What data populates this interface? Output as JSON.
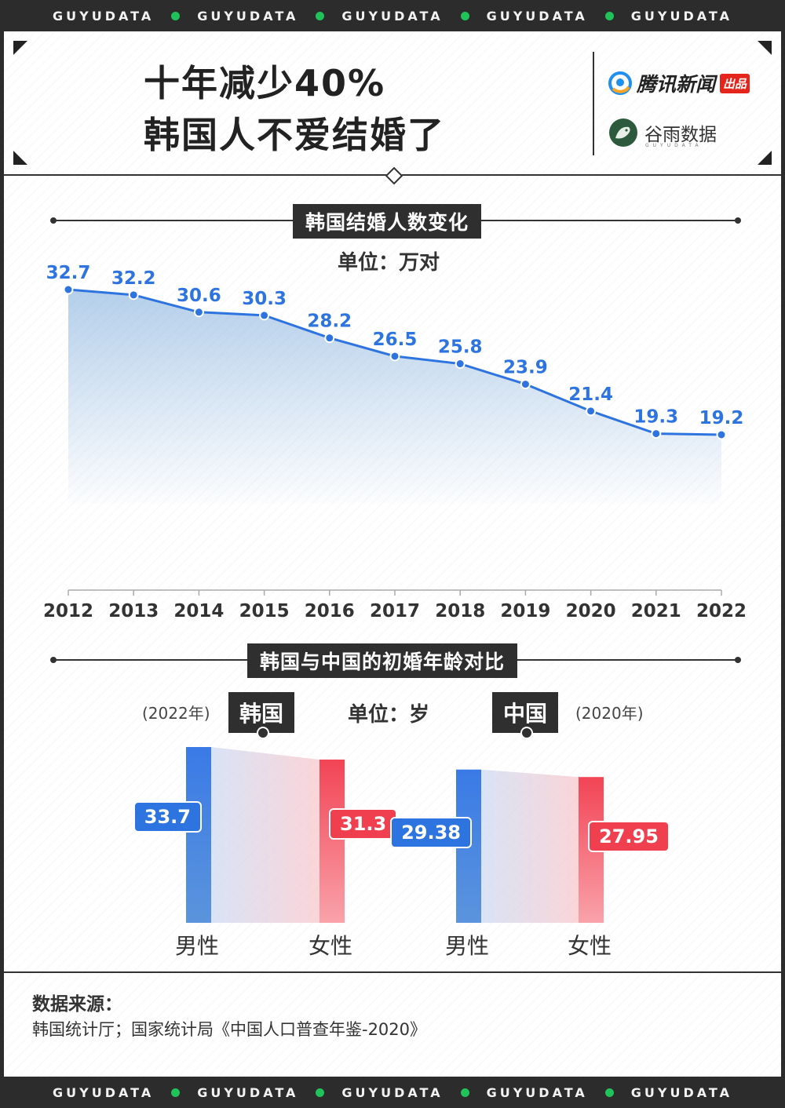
{
  "banner": {
    "word": "GUYUDATA",
    "repeat": 5,
    "dot_color": "#20c35a"
  },
  "header": {
    "title_line1": "十年减少40%",
    "title_line2": "韩国人不爱结婚了",
    "brand1": "腾讯新闻",
    "brand1_badge": "出品",
    "brand2": "谷雨数据",
    "brand2_sub": "GUYUDATA"
  },
  "chart_data": [
    {
      "type": "line",
      "title": "韩国结婚人数变化",
      "unit_label": "单位：万对",
      "x": [
        "2012",
        "2013",
        "2014",
        "2015",
        "2016",
        "2017",
        "2018",
        "2019",
        "2020",
        "2021",
        "2022"
      ],
      "series": [
        {
          "values": [
            32.7,
            32.2,
            30.6,
            30.3,
            28.2,
            26.5,
            25.8,
            23.9,
            21.4,
            19.3,
            19.2
          ]
        }
      ],
      "ylim": [
        0,
        34
      ],
      "color": "#2e74e0",
      "area_fill": true
    },
    {
      "type": "bar",
      "title": "韩国与中国的初婚年龄对比",
      "unit_label": "单位：岁",
      "groups": [
        {
          "country": "韩国",
          "year_note": "(2022年)",
          "male": 33.7,
          "female": 31.3,
          "male_label": "男性",
          "female_label": "女性"
        },
        {
          "country": "中国",
          "year_note": "(2020年)",
          "male": 29.38,
          "female": 27.95,
          "male_label": "男性",
          "female_label": "女性"
        }
      ],
      "colors": {
        "male": "#3c7de6",
        "female": "#f0404f"
      }
    }
  ],
  "source": {
    "title": "数据来源：",
    "text": "韩国统计厅；国家统计局《中国人口普查年鉴-2020》"
  }
}
